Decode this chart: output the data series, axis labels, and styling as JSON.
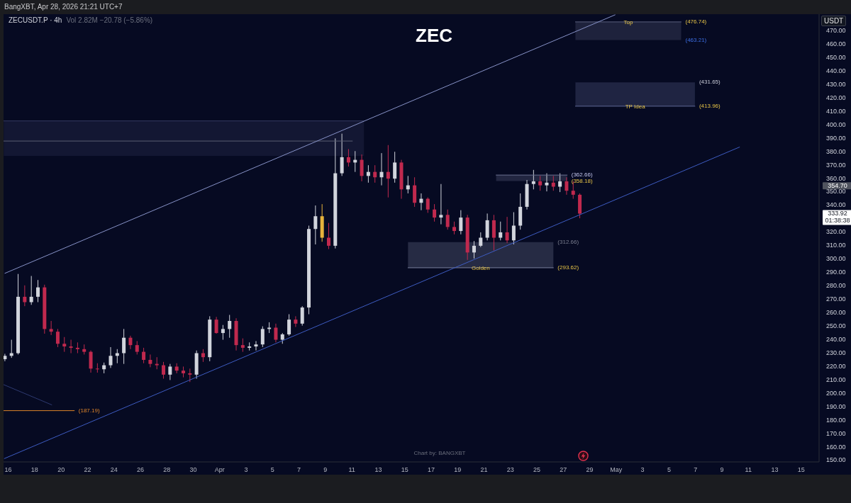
{
  "chart_data": {
    "type": "candlestick",
    "title": "ZEC",
    "subtitle": "ZECUSDT.P · 4h",
    "ylabel": "USDT",
    "x": [
      "2026-03-15T18:00",
      "2026-03-16T06:00",
      "2026-03-16T18:00",
      "2026-03-17T06:00",
      "2026-03-17T18:00",
      "2026-03-18T06:00",
      "2026-03-18T18:00",
      "2026-03-19T06:00",
      "2026-03-19T18:00",
      "2026-03-20T06:00",
      "2026-03-20T18:00",
      "2026-03-21T06:00",
      "2026-03-21T18:00",
      "2026-03-22T06:00",
      "2026-03-22T18:00",
      "2026-03-23T06:00",
      "2026-03-23T18:00",
      "2026-03-24T06:00",
      "2026-03-24T18:00",
      "2026-03-25T06:00",
      "2026-03-25T18:00",
      "2026-03-26T06:00",
      "2026-03-26T18:00",
      "2026-03-27T06:00",
      "2026-03-27T18:00",
      "2026-03-28T06:00",
      "2026-03-28T18:00",
      "2026-03-29T06:00",
      "2026-03-29T18:00",
      "2026-03-30T06:00",
      "2026-03-30T18:00",
      "2026-03-31T06:00",
      "2026-03-31T18:00",
      "2026-04-01T06:00",
      "2026-04-01T18:00",
      "2026-04-02T06:00",
      "2026-04-02T18:00",
      "2026-04-03T06:00",
      "2026-04-03T18:00",
      "2026-04-04T06:00",
      "2026-04-04T18:00",
      "2026-04-05T06:00",
      "2026-04-05T18:00",
      "2026-04-06T06:00",
      "2026-04-06T18:00",
      "2026-04-07T06:00",
      "2026-04-07T18:00",
      "2026-04-08T06:00",
      "2026-04-08T18:00",
      "2026-04-09T06:00",
      "2026-04-09T18:00",
      "2026-04-10T06:00",
      "2026-04-10T18:00",
      "2026-04-11T06:00",
      "2026-04-11T18:00",
      "2026-04-12T06:00",
      "2026-04-12T18:00",
      "2026-04-13T06:00",
      "2026-04-13T18:00",
      "2026-04-14T06:00",
      "2026-04-14T18:00",
      "2026-04-15T06:00",
      "2026-04-15T18:00",
      "2026-04-16T06:00",
      "2026-04-16T18:00",
      "2026-04-17T06:00",
      "2026-04-17T18:00",
      "2026-04-18T06:00",
      "2026-04-18T18:00",
      "2026-04-19T06:00",
      "2026-04-19T18:00",
      "2026-04-20T06:00",
      "2026-04-20T18:00",
      "2026-04-21T06:00",
      "2026-04-21T18:00",
      "2026-04-22T06:00",
      "2026-04-22T18:00",
      "2026-04-23T06:00",
      "2026-04-23T18:00",
      "2026-04-24T06:00",
      "2026-04-24T18:00",
      "2026-04-25T06:00",
      "2026-04-25T18:00",
      "2026-04-26T06:00",
      "2026-04-26T18:00",
      "2026-04-27T06:00",
      "2026-04-27T18:00",
      "2026-04-28T06:00"
    ],
    "ohlc": [
      [
        225.5,
        229.5,
        224,
        228
      ],
      [
        228,
        240,
        226.5,
        230
      ],
      [
        230,
        289,
        229,
        272
      ],
      [
        272,
        280.5,
        265,
        268
      ],
      [
        268,
        287.5,
        266,
        272
      ],
      [
        272,
        284.5,
        268,
        279
      ],
      [
        279,
        281,
        244.5,
        248
      ],
      [
        248,
        254,
        243.5,
        246
      ],
      [
        246,
        248,
        234.5,
        237
      ],
      [
        237,
        242,
        231,
        235
      ],
      [
        235,
        240,
        230,
        234
      ],
      [
        234,
        238,
        230,
        233
      ],
      [
        233,
        236.5,
        229,
        231
      ],
      [
        231,
        232,
        215.5,
        218.5
      ],
      [
        218.5,
        222.5,
        215.5,
        218
      ],
      [
        218,
        223,
        215,
        221
      ],
      [
        221,
        234.5,
        219,
        228
      ],
      [
        228,
        233,
        222.5,
        230
      ],
      [
        230,
        248,
        222,
        241.5
      ],
      [
        241.5,
        243,
        233,
        236
      ],
      [
        236,
        239,
        229,
        231
      ],
      [
        231,
        234,
        222.5,
        225
      ],
      [
        225,
        229,
        219.5,
        222
      ],
      [
        222,
        227,
        218,
        221
      ],
      [
        221,
        223.5,
        211,
        214
      ],
      [
        214,
        222,
        210,
        220
      ],
      [
        220,
        222.5,
        215,
        217
      ],
      [
        217,
        220,
        212,
        215
      ],
      [
        215,
        218.5,
        208.5,
        214
      ],
      [
        214,
        232,
        211,
        230
      ],
      [
        230,
        233,
        223.5,
        227
      ],
      [
        227,
        257.5,
        224,
        255
      ],
      [
        255,
        257,
        244.5,
        245
      ],
      [
        245,
        251,
        240,
        248
      ],
      [
        248,
        258.5,
        241.5,
        254
      ],
      [
        254,
        256,
        232,
        236
      ],
      [
        236,
        241,
        231,
        234
      ],
      [
        234,
        238,
        232,
        235
      ],
      [
        235,
        239,
        232,
        236.5
      ],
      [
        236.5,
        250,
        234.5,
        248
      ],
      [
        248,
        253,
        245,
        249
      ],
      [
        249,
        252,
        238,
        240
      ],
      [
        240,
        245,
        237,
        244
      ],
      [
        244,
        259,
        243,
        255
      ],
      [
        255,
        257.5,
        249.5,
        252
      ],
      [
        252,
        265,
        250.5,
        264
      ],
      [
        264,
        325,
        259,
        322.5
      ],
      [
        322.5,
        340,
        311,
        332
      ],
      [
        332,
        341,
        313,
        316
      ],
      [
        316,
        327,
        307.5,
        310
      ],
      [
        310,
        390,
        308,
        364
      ],
      [
        364,
        393.5,
        362,
        376
      ],
      [
        376,
        382,
        369,
        372
      ],
      [
        372,
        380.5,
        365,
        374
      ],
      [
        374,
        378,
        358,
        362
      ],
      [
        362,
        370,
        357,
        365
      ],
      [
        365,
        370,
        357,
        361
      ],
      [
        361,
        379,
        355,
        365
      ],
      [
        365,
        385,
        346,
        360
      ],
      [
        360,
        380,
        357,
        372
      ],
      [
        372,
        374,
        345,
        352
      ],
      [
        352,
        362,
        349,
        355
      ],
      [
        355,
        361,
        339,
        342
      ],
      [
        342,
        349,
        336.5,
        345
      ],
      [
        345,
        346,
        334.5,
        337
      ],
      [
        337,
        341,
        328,
        331
      ],
      [
        331,
        356,
        326,
        333
      ],
      [
        333,
        337,
        322,
        324
      ],
      [
        324,
        328,
        318.5,
        321
      ],
      [
        321,
        336.5,
        318.5,
        331
      ],
      [
        331,
        333,
        299.5,
        305
      ],
      [
        305,
        313.5,
        300.5,
        310
      ],
      [
        310,
        320,
        309,
        316
      ],
      [
        316,
        334,
        314,
        329
      ],
      [
        329,
        333,
        306.5,
        316
      ],
      [
        316,
        328,
        314,
        320
      ],
      [
        320,
        331.5,
        312,
        314
      ],
      [
        314,
        335,
        311,
        325
      ],
      [
        325,
        349,
        322,
        339
      ],
      [
        339,
        359,
        337,
        356
      ],
      [
        356,
        366.5,
        352,
        358
      ],
      [
        358,
        362,
        351,
        355
      ],
      [
        355,
        364,
        350.5,
        357
      ],
      [
        357,
        362,
        351,
        354
      ],
      [
        354,
        364,
        350,
        358
      ],
      [
        358,
        361,
        348,
        351
      ],
      [
        351,
        358,
        345,
        348
      ],
      [
        348,
        349,
        330.5,
        333.92
      ]
    ],
    "colors": [
      "#d1d4dc",
      "#d1d4dc",
      "#d1d4dc",
      "#c0294e",
      "#d1d4dc",
      "#d1d4dc",
      "#c0294e",
      "#c0294e",
      "#c0294e",
      "#c0294e",
      "#c0294e",
      "#c0294e",
      "#c0294e",
      "#c0294e",
      "#c0294e",
      "#d1d4dc",
      "#d1d4dc",
      "#d1d4dc",
      "#d1d4dc",
      "#c0294e",
      "#c0294e",
      "#c0294e",
      "#c0294e",
      "#c0294e",
      "#c0294e",
      "#d1d4dc",
      "#c0294e",
      "#c0294e",
      "#c0294e",
      "#d1d4dc",
      "#c0294e",
      "#d1d4dc",
      "#c0294e",
      "#d1d4dc",
      "#d1d4dc",
      "#c0294e",
      "#c0294e",
      "#d1d4dc",
      "#d1d4dc",
      "#d1d4dc",
      "#d1d4dc",
      "#c0294e",
      "#d1d4dc",
      "#d1d4dc",
      "#c0294e",
      "#d1d4dc",
      "#d1d4dc",
      "#d1d4dc",
      "#e6b33c",
      "#c0294e",
      "#d1d4dc",
      "#d1d4dc",
      "#c0294e",
      "#d1d4dc",
      "#c0294e",
      "#d1d4dc",
      "#c0294e",
      "#d1d4dc",
      "#c0294e",
      "#d1d4dc",
      "#c0294e",
      "#d1d4dc",
      "#c0294e",
      "#d1d4dc",
      "#c0294e",
      "#c0294e",
      "#d1d4dc",
      "#c0294e",
      "#c0294e",
      "#d1d4dc",
      "#c0294e",
      "#d1d4dc",
      "#d1d4dc",
      "#d1d4dc",
      "#c0294e",
      "#d1d4dc",
      "#c0294e",
      "#d1d4dc",
      "#d1d4dc",
      "#d1d4dc",
      "#d1d4dc",
      "#c0294e",
      "#d1d4dc",
      "#c0294e",
      "#d1d4dc",
      "#c0294e",
      "#c0294e",
      "#c0294e"
    ],
    "xlim": [
      "2026-03-15T15:30",
      "2026-05-16T08:30"
    ],
    "ylim": [
      149,
      482.5
    ],
    "xticks": [
      {
        "value": "2026-03-16",
        "label": "16"
      },
      {
        "value": "2026-03-18",
        "label": "18"
      },
      {
        "value": "2026-03-20",
        "label": "20"
      },
      {
        "value": "2026-03-22",
        "label": "22"
      },
      {
        "value": "2026-03-24",
        "label": "24"
      },
      {
        "value": "2026-03-26",
        "label": "26"
      },
      {
        "value": "2026-03-28",
        "label": "28"
      },
      {
        "value": "2026-03-30",
        "label": "30"
      },
      {
        "value": "2026-04-01",
        "label": "Apr"
      },
      {
        "value": "2026-04-03",
        "label": "3"
      },
      {
        "value": "2026-04-05",
        "label": "5"
      },
      {
        "value": "2026-04-07",
        "label": "7"
      },
      {
        "value": "2026-04-09",
        "label": "9"
      },
      {
        "value": "2026-04-11",
        "label": "11"
      },
      {
        "value": "2026-04-13",
        "label": "13"
      },
      {
        "value": "2026-04-15",
        "label": "15"
      },
      {
        "value": "2026-04-17",
        "label": "17"
      },
      {
        "value": "2026-04-19",
        "label": "19"
      },
      {
        "value": "2026-04-21",
        "label": "21"
      },
      {
        "value": "2026-04-23",
        "label": "23"
      },
      {
        "value": "2026-04-25",
        "label": "25"
      },
      {
        "value": "2026-04-27",
        "label": "27"
      },
      {
        "value": "2026-04-29",
        "label": "29"
      },
      {
        "value": "2026-05-01",
        "label": "May"
      },
      {
        "value": "2026-05-03",
        "label": "3"
      },
      {
        "value": "2026-05-05",
        "label": "5"
      },
      {
        "value": "2026-05-07",
        "label": "7"
      },
      {
        "value": "2026-05-09",
        "label": "9"
      },
      {
        "value": "2026-05-11",
        "label": "11"
      },
      {
        "value": "2026-05-13",
        "label": "13"
      },
      {
        "value": "2026-05-15",
        "label": "15"
      }
    ],
    "yticks": [
      {
        "value": 150,
        "label": "150.00"
      },
      {
        "value": 160,
        "label": "160.00"
      },
      {
        "value": 170,
        "label": "170.00"
      },
      {
        "value": 180,
        "label": "180.00"
      },
      {
        "value": 190,
        "label": "190.00"
      },
      {
        "value": 200,
        "label": "200.00"
      },
      {
        "value": 210,
        "label": "210.00"
      },
      {
        "value": 220,
        "label": "220.00"
      },
      {
        "value": 230,
        "label": "230.00"
      },
      {
        "value": 240,
        "label": "240.00"
      },
      {
        "value": 250,
        "label": "250.00"
      },
      {
        "value": 260,
        "label": "260.00"
      },
      {
        "value": 270,
        "label": "270.00"
      },
      {
        "value": 280,
        "label": "280.00"
      },
      {
        "value": 290,
        "label": "290.00"
      },
      {
        "value": 300,
        "label": "300.00"
      },
      {
        "value": 310,
        "label": "310.00"
      },
      {
        "value": 320,
        "label": "320.00"
      },
      {
        "value": 340,
        "label": "340.00"
      },
      {
        "value": 350,
        "label": "350.00"
      },
      {
        "value": 360,
        "label": "360.00"
      },
      {
        "value": 370,
        "label": "370.00"
      },
      {
        "value": 380,
        "label": "380.00"
      },
      {
        "value": 390,
        "label": "390.00"
      },
      {
        "value": 400,
        "label": "400.00"
      },
      {
        "value": 410,
        "label": "410.00"
      },
      {
        "value": 420,
        "label": "420.00"
      },
      {
        "value": 430,
        "label": "430.00"
      },
      {
        "value": 440,
        "label": "440.00"
      },
      {
        "value": 450,
        "label": "450.00"
      },
      {
        "value": 460,
        "label": "460.00"
      },
      {
        "value": 470,
        "label": "470.00"
      },
      {
        "value": 354.7,
        "label": "354.70"
      },
      {
        "value": 333.92,
        "label": "333.92"
      }
    ],
    "series": [
      {
        "type": "line",
        "color": "#333a60",
        "x": [
          "2026-03-15T16:00",
          "2026-04-11T22:00"
        ],
        "values": [
          403,
          403
        ],
        "lower": [
          377,
          377
        ],
        "upper": [
          403,
          403
        ]
      },
      {
        "type": "line",
        "name": "Top",
        "color": "#5c6180",
        "x": [
          "2026-04-27T22:00",
          "2026-05-05T22:00"
        ],
        "values": [
          476.74,
          476.74
        ],
        "lower": [
          463.21,
          463.21
        ],
        "upper": [
          476.74,
          476.74
        ]
      },
      {
        "type": "line",
        "name": "TP Idea",
        "color": "#5f6796",
        "x": [
          "2026-04-27T22:00",
          "2026-05-06T23:00"
        ],
        "values": [
          413.96,
          413.96
        ],
        "lower": [
          413.96,
          413.96
        ],
        "upper": [
          431.65,
          431.65
        ]
      },
      {
        "type": "line",
        "color": "#6a6f8f",
        "x": [
          "2026-04-21T22:00",
          "2026-04-27T07:00"
        ],
        "values": [
          362.66,
          362.66
        ],
        "lower": [
          358.18,
          358.18
        ],
        "upper": [
          362.66,
          362.66
        ]
      },
      {
        "type": "line",
        "name": "Golden",
        "color": "#7a7f9c",
        "x": [
          "2026-04-15T06:00",
          "2026-04-26T06:00"
        ],
        "values": [
          293.62,
          293.62
        ],
        "lower": [
          293.62,
          293.62
        ],
        "upper": [
          312.66,
          312.66
        ]
      },
      {
        "type": "line",
        "color": "#5b6072",
        "x": [
          "2026-03-15T16:00",
          "2026-04-11T01:00"
        ],
        "values": [
          388,
          388
        ]
      },
      {
        "type": "line",
        "color": "#e0862a",
        "x": [
          "2026-03-15T16:00",
          "2026-03-21T00:00"
        ],
        "values": [
          187.19,
          187.19
        ]
      },
      {
        "type": "line",
        "color": "#2e3a70",
        "x": [
          "2026-03-15T16:00",
          "2026-03-19T07:00"
        ],
        "values": [
          206.5,
          191.5
        ]
      },
      {
        "type": "line",
        "color": "#8893c8",
        "x": [
          "2026-03-15T18:00",
          "2026-04-30T22:00"
        ],
        "values": [
          289.5,
          482
        ]
      },
      {
        "type": "line",
        "color": "#3e5cc2",
        "x": [
          "2026-03-15T17:00",
          "2026-05-10T08:00"
        ],
        "values": [
          151.5,
          383.5
        ]
      }
    ],
    "annotations": [
      "BangXBT, Apr 28, 2026 21:21 UTC+7",
      "Vol 2.82M −20.78 (−5.86%)",
      "Chart by: BANGXBT",
      "01:38:38",
      {
        "text": "(476.74)",
        "x": "2026-05-05T22:00",
        "y": 476.74
      },
      {
        "text": "(463.21)",
        "x": "2026-05-05T22:00",
        "y": 463.21
      },
      {
        "text": "(431.65)",
        "x": "2026-05-06T23:00",
        "y": 431.65
      },
      {
        "text": "(413.96)",
        "x": "2026-05-06T23:00",
        "y": 413.96
      },
      {
        "text": "(362.66)",
        "x": "2026-04-27T07:00",
        "y": 362.66
      },
      {
        "text": "(358.18)",
        "x": "2026-04-27T07:00",
        "y": 358.18
      },
      {
        "text": "(312.66)",
        "x": "2026-04-26T06:00",
        "y": 312.66
      },
      {
        "text": "(293.62)",
        "x": "2026-04-26T06:00",
        "y": 293.62
      },
      {
        "text": "(187.19)",
        "x": "2026-03-21T00:00",
        "y": 187.19
      }
    ]
  }
}
